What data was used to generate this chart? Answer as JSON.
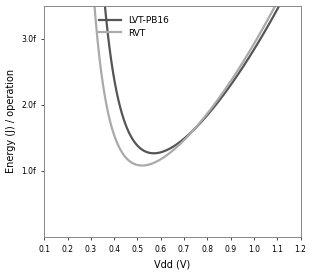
{
  "title": "",
  "xlabel": "Vdd (V)",
  "ylabel": "Energy (J) / operation",
  "xlim": [
    0.1,
    1.2
  ],
  "ylim": [
    0.0,
    3.5e-15
  ],
  "xticks": [
    0.1,
    0.2,
    0.3,
    0.4,
    0.5,
    0.6,
    0.7,
    0.8,
    0.9,
    1.0,
    1.1,
    1.2
  ],
  "ytick_vals": [
    1e-15,
    2e-15,
    3e-15
  ],
  "ytick_labels": [
    "1.0f",
    "2.0f",
    "3.0f"
  ],
  "legend_labels": [
    "LVT-PB16",
    "RVT"
  ],
  "line_color_lvt": "#555555",
  "line_color_rvt": "#aaaaaa",
  "background_color": "#ffffff",
  "line_width": 1.6,
  "lvt_leakage_coeff": 3.2e-17,
  "lvt_leakage_exp": 4.5,
  "lvt_dynamic_coeff": 2.8e-15,
  "lvt_dynamic_exp": 2.1,
  "rvt_leakage_coeff": 1.8e-17,
  "rvt_leakage_exp": 4.5,
  "rvt_dynamic_coeff": 2.9e-15,
  "rvt_dynamic_exp": 2.1
}
